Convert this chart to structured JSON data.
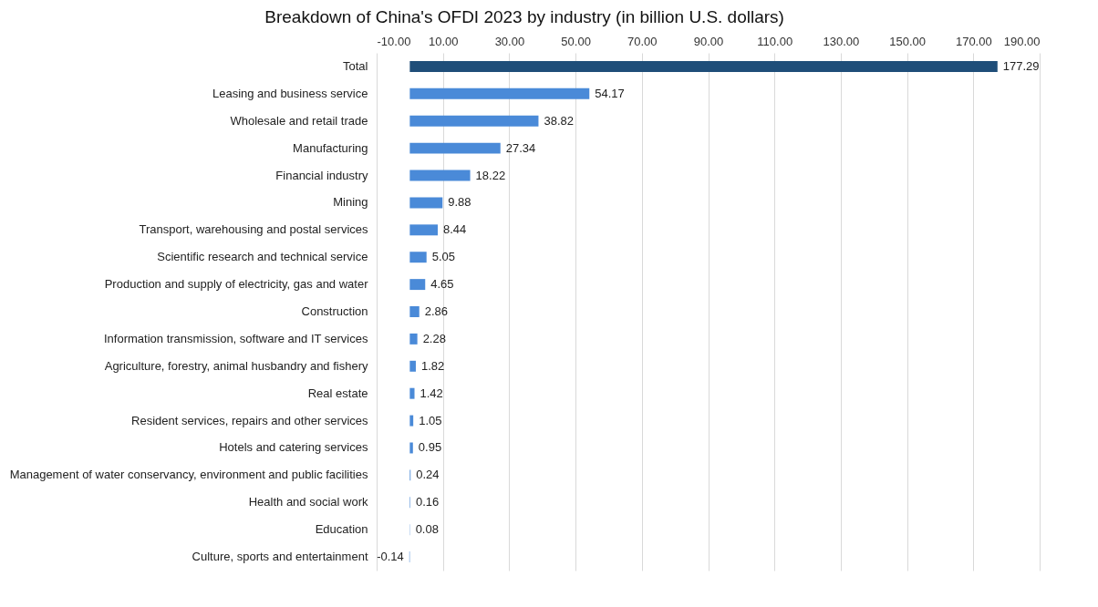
{
  "chart_data": {
    "type": "bar",
    "orientation": "horizontal",
    "title": "Breakdown of China's OFDI 2023 by industry (in billion U.S. dollars)",
    "categories": [
      "Total",
      "Leasing and business service",
      "Wholesale and retail trade",
      "Manufacturing",
      "Financial industry",
      "Mining",
      "Transport, warehousing and postal services",
      "Scientific research and technical service",
      "Production and supply of electricity, gas and water",
      "Construction",
      "Information transmission, software and IT services",
      "Agriculture, forestry, animal husbandry and fishery",
      "Real estate",
      "Resident services, repairs and other services",
      "Hotels and catering services",
      "Management of water conservancy, environment and public facilities",
      "Health and social work",
      "Education",
      "Culture, sports and entertainment"
    ],
    "values": [
      177.29,
      54.17,
      38.82,
      27.34,
      18.22,
      9.88,
      8.44,
      5.05,
      4.65,
      2.86,
      2.28,
      1.82,
      1.42,
      1.05,
      0.95,
      0.24,
      0.16,
      0.08,
      -0.14
    ],
    "colors": [
      "#1f4e79",
      "#4a8ad8",
      "#4a8ad8",
      "#4a8ad8",
      "#4a8ad8",
      "#4a8ad8",
      "#4a8ad8",
      "#4a8ad8",
      "#4a8ad8",
      "#4a8ad8",
      "#4a8ad8",
      "#4a8ad8",
      "#4a8ad8",
      "#4a8ad8",
      "#4a8ad8",
      "#4a8ad8",
      "#4a8ad8",
      "#4a8ad8",
      "#4a8ad8"
    ],
    "xlim": [
      -10,
      190
    ],
    "xticks": [
      {
        "value": -10,
        "label": "-10.00"
      },
      {
        "value": 10,
        "label": "10.00"
      },
      {
        "value": 30,
        "label": "30.00"
      },
      {
        "value": 50,
        "label": "50.00"
      },
      {
        "value": 70,
        "label": "70.00"
      },
      {
        "value": 90,
        "label": "90.00"
      },
      {
        "value": 110,
        "label": "110.00"
      },
      {
        "value": 130,
        "label": "130.00"
      },
      {
        "value": 150,
        "label": "150.00"
      },
      {
        "value": 170,
        "label": "170.00"
      },
      {
        "value": 190,
        "label": "190.00"
      }
    ],
    "grid": true,
    "data_labels": true
  }
}
